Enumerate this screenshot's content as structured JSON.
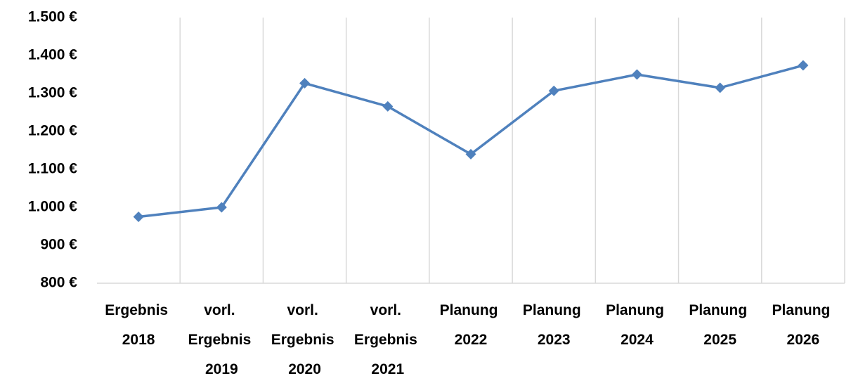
{
  "chart_data": {
    "type": "line",
    "categories": [
      "Ergebnis 2018",
      "vorl. Ergebnis 2019",
      "vorl. Ergebnis 2020",
      "vorl. Ergebnis 2021",
      "Planung 2022",
      "Planung 2023",
      "Planung 2024",
      "Planung 2025",
      "Planung 2026"
    ],
    "series": [
      {
        "name": null,
        "color": "#4f81bd",
        "values": [
          975,
          1000,
          1327,
          1266,
          1140,
          1307,
          1350,
          1315,
          1374
        ]
      }
    ],
    "ylim": [
      800,
      1500
    ],
    "yticks": [
      {
        "value": 800,
        "label": "800 €"
      },
      {
        "value": 900,
        "label": "900 €"
      },
      {
        "value": 1000,
        "label": "1.000 €"
      },
      {
        "value": 1100,
        "label": "1.100 €"
      },
      {
        "value": 1200,
        "label": "1.200 €"
      },
      {
        "value": 1300,
        "label": "1.300 €"
      },
      {
        "value": 1400,
        "label": "1.400 €"
      },
      {
        "value": 1500,
        "label": "1.500 €"
      }
    ],
    "grid": true
  }
}
